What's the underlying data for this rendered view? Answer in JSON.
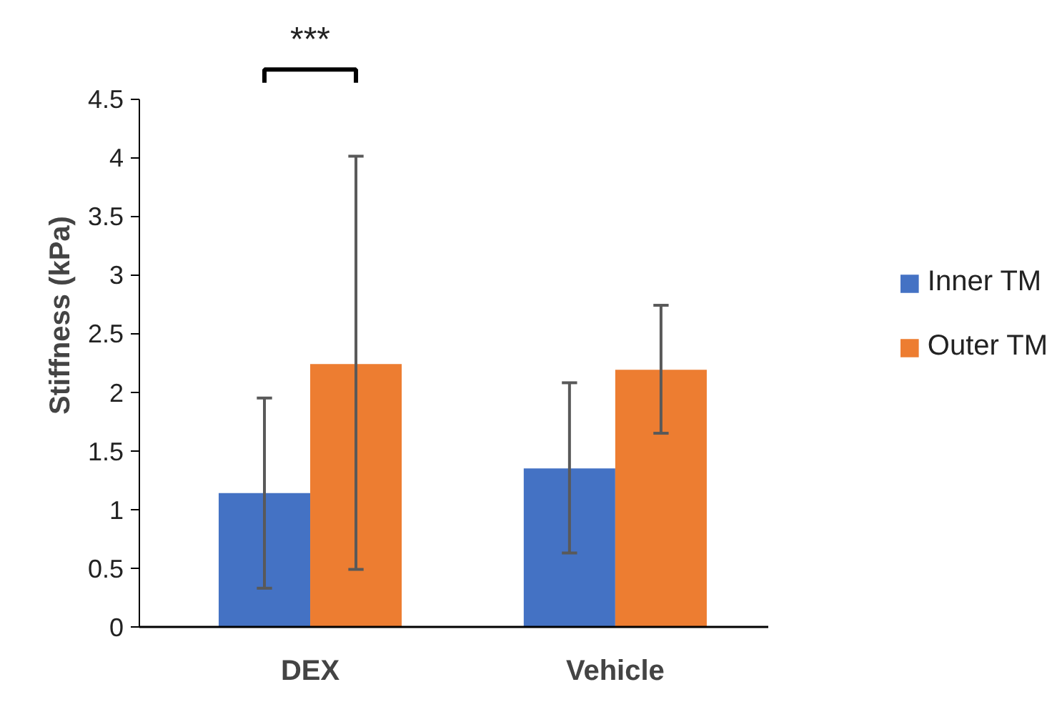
{
  "chart_data": {
    "type": "bar",
    "ylabel": "Stiffness (kPa)",
    "categories": [
      "DEX",
      "Vehicle"
    ],
    "series": [
      {
        "name": "Inner TM",
        "color": "#4472c4",
        "values": [
          1.14,
          1.35
        ],
        "errors": [
          [
            0.33,
            1.95
          ],
          [
            0.63,
            2.08
          ]
        ]
      },
      {
        "name": "Outer TM",
        "color": "#ed7d31",
        "values": [
          2.24,
          2.19
        ],
        "errors": [
          [
            0.49,
            4.01
          ],
          [
            1.65,
            2.74
          ]
        ]
      }
    ],
    "ylim": [
      0,
      4.5
    ],
    "yticks": [
      0,
      0.5,
      1,
      1.5,
      2,
      2.5,
      3,
      3.5,
      4,
      4.5
    ],
    "annotations": [
      "***"
    ],
    "grid": false,
    "legend": "right"
  }
}
